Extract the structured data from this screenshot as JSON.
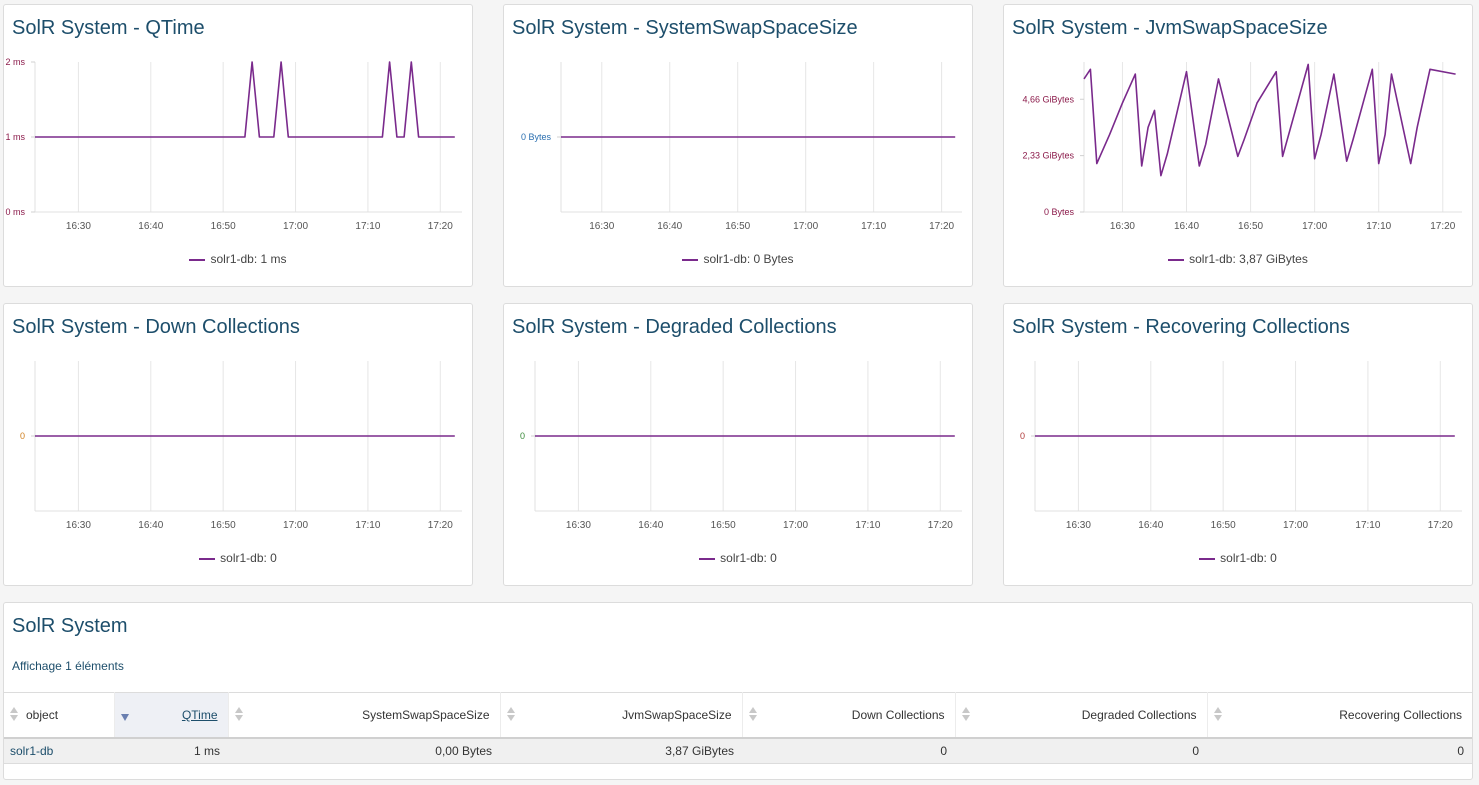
{
  "charts": [
    {
      "title": "SolR System - QTime",
      "legend": "solr1-db: 1 ms",
      "y_tick_color": "#8b1a4a",
      "chart_data": {
        "type": "line",
        "xlabel": "",
        "ylabel": "",
        "x_ticks": [
          "16:30",
          "16:40",
          "16:50",
          "17:00",
          "17:10",
          "17:20"
        ],
        "xlim": [
          "16:24",
          "17:23"
        ],
        "y_ticks": [
          "0 ms",
          "1 ms",
          "2 ms"
        ],
        "ylim": [
          0,
          2
        ],
        "series": [
          {
            "name": "solr1-db",
            "color": "#7a2a8c",
            "x": [
              "16:24",
              "16:53",
              "16:54",
              "16:55",
              "16:57",
              "16:58",
              "16:59",
              "17:12",
              "17:13",
              "17:14",
              "17:15",
              "17:16",
              "17:17",
              "17:22"
            ],
            "values": [
              1,
              1,
              2,
              1,
              1,
              2,
              1,
              1,
              2,
              1,
              1,
              2,
              1,
              1
            ]
          }
        ]
      }
    },
    {
      "title": "SolR System - SystemSwapSpaceSize",
      "legend": "solr1-db: 0 Bytes",
      "y_tick_color": "#2a6fb0",
      "chart_data": {
        "type": "line",
        "xlabel": "",
        "ylabel": "",
        "x_ticks": [
          "16:30",
          "16:40",
          "16:50",
          "17:00",
          "17:10",
          "17:20"
        ],
        "xlim": [
          "16:24",
          "17:23"
        ],
        "y_ticks": [
          "0 Bytes"
        ],
        "ylim": [
          -1,
          1
        ],
        "series": [
          {
            "name": "solr1-db",
            "color": "#7a2a8c",
            "x": [
              "16:24",
              "17:22"
            ],
            "values": [
              0,
              0
            ]
          }
        ]
      }
    },
    {
      "title": "SolR System - JvmSwapSpaceSize",
      "legend": "solr1-db: 3,87 GiBytes",
      "y_tick_color": "#8b1a4a",
      "chart_data": {
        "type": "line",
        "xlabel": "",
        "ylabel": "",
        "x_ticks": [
          "16:30",
          "16:40",
          "16:50",
          "17:00",
          "17:10",
          "17:20"
        ],
        "xlim": [
          "16:24",
          "17:23"
        ],
        "y_ticks": [
          "0 Bytes",
          "2,33 GiBytes",
          "4,66 GiBytes"
        ],
        "ylim": [
          0,
          6.2
        ],
        "series": [
          {
            "name": "solr1-db",
            "color": "#7a2a8c",
            "x": [
              "16:24",
              "16:25",
              "16:26",
              "16:28",
              "16:30",
              "16:32",
              "16:33",
              "16:34",
              "16:35",
              "16:36",
              "16:37",
              "16:40",
              "16:42",
              "16:43",
              "16:45",
              "16:48",
              "16:49",
              "16:51",
              "16:54",
              "16:55",
              "16:59",
              "17:00",
              "17:01",
              "17:03",
              "17:05",
              "17:06",
              "17:09",
              "17:10",
              "17:11",
              "17:12",
              "17:15",
              "17:16",
              "17:18",
              "17:22"
            ],
            "values": [
              5.5,
              5.9,
              2.0,
              3.2,
              4.5,
              5.7,
              1.9,
              3.5,
              4.2,
              1.5,
              2.4,
              5.8,
              1.9,
              2.8,
              5.5,
              2.3,
              3.0,
              4.5,
              5.8,
              2.3,
              6.1,
              2.2,
              3.2,
              5.7,
              2.1,
              3.0,
              5.9,
              2.0,
              3.2,
              5.7,
              2.0,
              3.5,
              5.9,
              5.7
            ]
          }
        ]
      }
    },
    {
      "title": "SolR System - Down Collections",
      "legend": "solr1-db: 0",
      "y_tick_color": "#d08020",
      "chart_data": {
        "type": "line",
        "xlabel": "",
        "ylabel": "",
        "x_ticks": [
          "16:30",
          "16:40",
          "16:50",
          "17:00",
          "17:10",
          "17:20"
        ],
        "xlim": [
          "16:24",
          "17:23"
        ],
        "y_ticks": [
          "0"
        ],
        "ylim": [
          -1,
          1
        ],
        "series": [
          {
            "name": "solr1-db",
            "color": "#7a2a8c",
            "x": [
              "16:24",
              "17:22"
            ],
            "values": [
              0,
              0
            ]
          }
        ]
      }
    },
    {
      "title": "SolR System - Degraded Collections",
      "legend": "solr1-db: 0",
      "y_tick_color": "#3a8a3a",
      "chart_data": {
        "type": "line",
        "xlabel": "",
        "ylabel": "",
        "x_ticks": [
          "16:30",
          "16:40",
          "16:50",
          "17:00",
          "17:10",
          "17:20"
        ],
        "xlim": [
          "16:24",
          "17:23"
        ],
        "y_ticks": [
          "0"
        ],
        "ylim": [
          -1,
          1
        ],
        "series": [
          {
            "name": "solr1-db",
            "color": "#7a2a8c",
            "x": [
              "16:24",
              "17:22"
            ],
            "values": [
              0,
              0
            ]
          }
        ]
      }
    },
    {
      "title": "SolR System - Recovering Collections",
      "legend": "solr1-db: 0",
      "y_tick_color": "#b03a3a",
      "chart_data": {
        "type": "line",
        "xlabel": "",
        "ylabel": "",
        "x_ticks": [
          "16:30",
          "16:40",
          "16:50",
          "17:00",
          "17:10",
          "17:20"
        ],
        "xlim": [
          "16:24",
          "17:23"
        ],
        "y_ticks": [
          "0"
        ],
        "ylim": [
          -1,
          1
        ],
        "series": [
          {
            "name": "solr1-db",
            "color": "#7a2a8c",
            "x": [
              "16:24",
              "17:22"
            ],
            "values": [
              0,
              0
            ]
          }
        ]
      }
    }
  ],
  "table_panel": {
    "title": "SolR System",
    "subtitle": "Affichage 1 éléments",
    "columns": [
      "object",
      "QTime",
      "SystemSwapSpaceSize",
      "JvmSwapSpaceSize",
      "Down Collections",
      "Degraded Collections",
      "Recovering Collections"
    ],
    "sorted_column": "QTime",
    "rows": [
      [
        "solr1-db",
        "1 ms",
        "0,00 Bytes",
        "3,87 GiBytes",
        "0",
        "0",
        "0"
      ]
    ]
  }
}
